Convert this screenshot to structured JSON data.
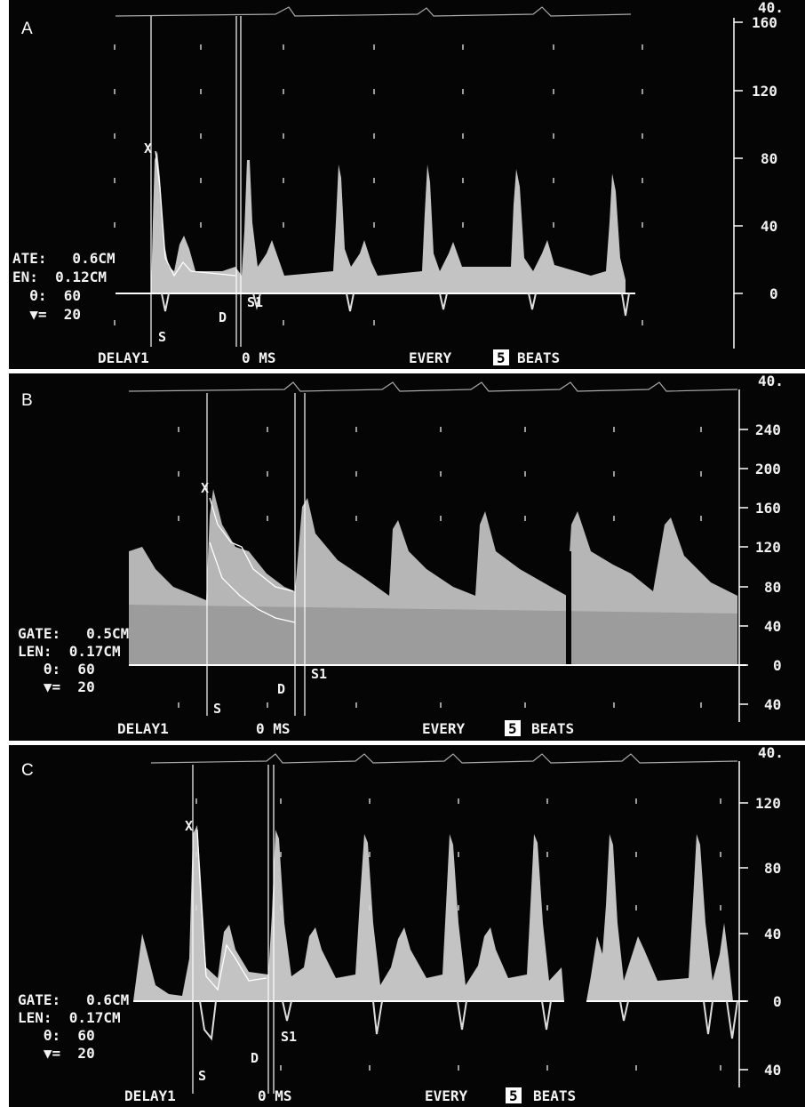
{
  "panels": [
    {
      "letter": "A",
      "readout": {
        "l1": "ATE:   0.6CM",
        "l2": "EN:  0.12CM",
        "l3": "  θ:  60",
        "l4": "  ▼=  20"
      },
      "markers": {
        "s": "S",
        "d": "D",
        "s1": "S1",
        "x": "X"
      },
      "footer": {
        "delay": "DELAY1",
        "ms": "0 MS",
        "every": "EVERY",
        "beats_num": "5",
        "beats": "BEATS"
      },
      "scale_top": "40.",
      "scale": [
        "160",
        "120",
        "80",
        "40",
        "0"
      ],
      "spectrum": "pulsed"
    },
    {
      "letter": "B",
      "readout": {
        "l1": "GATE:   0.5CM",
        "l2": "LEN:  0.17CM",
        "l3": "   θ:  60",
        "l4": "   ▼=  20"
      },
      "markers": {
        "s": "S",
        "d": "D",
        "s1": "S1",
        "x": "X"
      },
      "footer": {
        "delay": "DELAY1",
        "ms": "0 MS",
        "every": "EVERY",
        "beats_num": "5",
        "beats": "BEATS"
      },
      "scale_top": "40.",
      "scale": [
        "240",
        "200",
        "160",
        "120",
        "80",
        "40",
        "0",
        "40"
      ],
      "spectrum": "continuous"
    },
    {
      "letter": "C",
      "readout": {
        "l1": "GATE:   0.6CM",
        "l2": "LEN:  0.17CM",
        "l3": "   θ:  60",
        "l4": "   ▼=  20"
      },
      "markers": {
        "s": "S",
        "d": "D",
        "s1": "S1",
        "x": "X"
      },
      "footer": {
        "delay": "DELAY1",
        "ms": "0 MS",
        "every": "EVERY",
        "beats_num": "5",
        "beats": "BEATS"
      },
      "scale_top": "40.",
      "scale": [
        "120",
        "80",
        "40",
        "0",
        "40"
      ],
      "spectrum": "pulsed"
    }
  ]
}
